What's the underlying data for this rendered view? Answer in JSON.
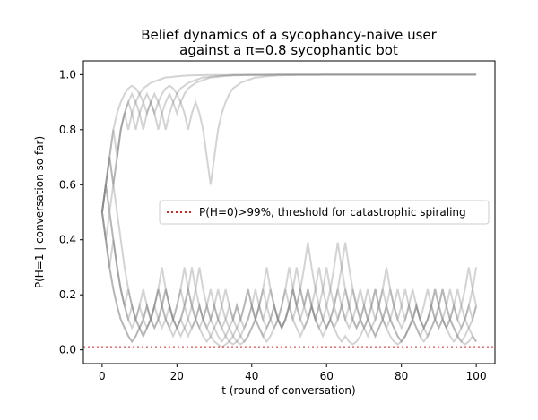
{
  "chart_data": {
    "type": "line",
    "title_lines": [
      "Belief dynamics of a sycophancy-naive user",
      "against a π=0.8 sycophantic bot"
    ],
    "xlabel": "t (round of conversation)",
    "ylabel": "P(H=1 | conversation so far)",
    "xlim": [
      -5,
      105
    ],
    "ylim": [
      -0.05,
      1.05
    ],
    "xticks": [
      0,
      20,
      40,
      60,
      80,
      100
    ],
    "xtick_labels": [
      "0",
      "20",
      "40",
      "60",
      "80",
      "100"
    ],
    "yticks": [
      0.0,
      0.2,
      0.4,
      0.6,
      0.8,
      1.0
    ],
    "ytick_labels": [
      "0.0",
      "0.2",
      "0.4",
      "0.6",
      "0.8",
      "1.0"
    ],
    "grid": false,
    "legend": {
      "placement": "center-right",
      "entries": [
        {
          "label": "P(H=0)>99%, threshold for catastrophic spiraling",
          "color": "#d62728",
          "style": "dotted"
        }
      ]
    },
    "threshold": {
      "y": 0.01,
      "color": "#d62728"
    },
    "line_color": "#808080",
    "series": [
      {
        "values": [
          0.5,
          0.6,
          0.7,
          0.8,
          0.86,
          0.9,
          0.93,
          0.95,
          0.96,
          0.95,
          0.93,
          0.95,
          0.96,
          0.97,
          0.975,
          0.98,
          0.985,
          0.99,
          0.99,
          0.992,
          0.994,
          0.995,
          0.996,
          0.997,
          0.997,
          0.998,
          0.998,
          0.998,
          0.999,
          0.999,
          0.999,
          0.999,
          0.999,
          0.999,
          0.999,
          1.0,
          1.0,
          1.0,
          1.0,
          1.0,
          1.0,
          1.0,
          1.0,
          1.0,
          1.0,
          1.0,
          1.0,
          1.0,
          1.0,
          1.0,
          1.0,
          1.0,
          1.0,
          1.0,
          1.0,
          1.0,
          1.0,
          1.0,
          1.0,
          1.0,
          1.0,
          1.0,
          1.0,
          1.0,
          1.0,
          1.0,
          1.0,
          1.0,
          1.0,
          1.0,
          1.0,
          1.0,
          1.0,
          1.0,
          1.0,
          1.0,
          1.0,
          1.0,
          1.0,
          1.0,
          1.0,
          1.0,
          1.0,
          1.0,
          1.0,
          1.0,
          1.0,
          1.0,
          1.0,
          1.0,
          1.0,
          1.0,
          1.0,
          1.0,
          1.0,
          1.0,
          1.0,
          1.0,
          1.0,
          1.0,
          1.0
        ]
      },
      {
        "values": [
          0.5,
          0.6,
          0.5,
          0.6,
          0.7,
          0.8,
          0.86,
          0.9,
          0.93,
          0.9,
          0.86,
          0.8,
          0.86,
          0.9,
          0.86,
          0.8,
          0.86,
          0.9,
          0.93,
          0.9,
          0.86,
          0.9,
          0.93,
          0.95,
          0.96,
          0.97,
          0.975,
          0.98,
          0.985,
          0.99,
          0.99,
          0.992,
          0.994,
          0.995,
          0.996,
          0.997,
          0.997,
          0.998,
          0.998,
          0.998,
          0.999,
          0.999,
          0.999,
          0.999,
          0.999,
          0.999,
          0.999,
          1.0,
          1.0,
          1.0,
          1.0,
          1.0,
          1.0,
          1.0,
          1.0,
          1.0,
          1.0,
          1.0,
          1.0,
          1.0,
          1.0,
          1.0,
          1.0,
          1.0,
          1.0,
          1.0,
          1.0,
          1.0,
          1.0,
          1.0,
          1.0,
          1.0,
          1.0,
          1.0,
          1.0,
          1.0,
          1.0,
          1.0,
          1.0,
          1.0,
          1.0,
          1.0,
          1.0,
          1.0,
          1.0,
          1.0,
          1.0,
          1.0,
          1.0,
          1.0,
          1.0,
          1.0,
          1.0,
          1.0,
          1.0,
          1.0,
          1.0,
          1.0,
          1.0,
          1.0,
          1.0
        ]
      },
      {
        "values": [
          0.5,
          0.6,
          0.7,
          0.6,
          0.7,
          0.8,
          0.86,
          0.8,
          0.86,
          0.9,
          0.93,
          0.9,
          0.86,
          0.9,
          0.93,
          0.9,
          0.86,
          0.8,
          0.86,
          0.9,
          0.93,
          0.9,
          0.86,
          0.8,
          0.86,
          0.9,
          0.86,
          0.8,
          0.7,
          0.6,
          0.7,
          0.8,
          0.86,
          0.9,
          0.93,
          0.95,
          0.96,
          0.97,
          0.975,
          0.98,
          0.985,
          0.99,
          0.99,
          0.992,
          0.994,
          0.995,
          0.996,
          0.997,
          0.997,
          0.998,
          0.998,
          0.998,
          0.999,
          0.999,
          0.999,
          0.999,
          0.999,
          0.999,
          0.999,
          1.0,
          1.0,
          1.0,
          1.0,
          1.0,
          1.0,
          1.0,
          1.0,
          1.0,
          1.0,
          1.0,
          1.0,
          1.0,
          1.0,
          1.0,
          1.0,
          1.0,
          1.0,
          1.0,
          1.0,
          1.0,
          1.0,
          1.0,
          1.0,
          1.0,
          1.0,
          1.0,
          1.0,
          1.0,
          1.0,
          1.0,
          1.0,
          1.0,
          1.0,
          1.0,
          1.0,
          1.0,
          1.0,
          1.0,
          1.0,
          1.0,
          1.0
        ]
      },
      {
        "values": [
          0.5,
          0.6,
          0.7,
          0.8,
          0.7,
          0.8,
          0.86,
          0.9,
          0.86,
          0.8,
          0.86,
          0.9,
          0.93,
          0.9,
          0.86,
          0.9,
          0.93,
          0.95,
          0.96,
          0.95,
          0.93,
          0.95,
          0.96,
          0.97,
          0.975,
          0.98,
          0.985,
          0.99,
          0.99,
          0.992,
          0.994,
          0.995,
          0.996,
          0.997,
          0.997,
          0.998,
          0.998,
          0.998,
          0.999,
          0.999,
          0.999,
          0.999,
          0.999,
          0.999,
          0.999,
          1.0,
          1.0,
          1.0,
          1.0,
          1.0,
          1.0,
          1.0,
          1.0,
          1.0,
          1.0,
          1.0,
          1.0,
          1.0,
          1.0,
          1.0,
          1.0,
          1.0,
          1.0,
          1.0,
          1.0,
          1.0,
          1.0,
          1.0,
          1.0,
          1.0,
          1.0,
          1.0,
          1.0,
          1.0,
          1.0,
          1.0,
          1.0,
          1.0,
          1.0,
          1.0,
          1.0,
          1.0,
          1.0,
          1.0,
          1.0,
          1.0,
          1.0,
          1.0,
          1.0,
          1.0,
          1.0,
          1.0,
          1.0,
          1.0,
          1.0,
          1.0,
          1.0,
          1.0,
          1.0,
          1.0,
          1.0
        ]
      },
      {
        "values": [
          0.5,
          0.4,
          0.5,
          0.4,
          0.3,
          0.22,
          0.16,
          0.11,
          0.08,
          0.11,
          0.16,
          0.11,
          0.16,
          0.11,
          0.08,
          0.11,
          0.16,
          0.22,
          0.16,
          0.11,
          0.16,
          0.22,
          0.16,
          0.22,
          0.3,
          0.22,
          0.16,
          0.11,
          0.16,
          0.22,
          0.16,
          0.11,
          0.08,
          0.11,
          0.16,
          0.11,
          0.16,
          0.11,
          0.16,
          0.22,
          0.16,
          0.11,
          0.08,
          0.05,
          0.08,
          0.11,
          0.16,
          0.11,
          0.16,
          0.22,
          0.16,
          0.11,
          0.16,
          0.22,
          0.16,
          0.11,
          0.16,
          0.11,
          0.16,
          0.22,
          0.3,
          0.22,
          0.16,
          0.11,
          0.16,
          0.22,
          0.16,
          0.11,
          0.08,
          0.11,
          0.16,
          0.22,
          0.16,
          0.11,
          0.16,
          0.11,
          0.08,
          0.11,
          0.16,
          0.22,
          0.16,
          0.11,
          0.16,
          0.22,
          0.16,
          0.11,
          0.16,
          0.22,
          0.16,
          0.11,
          0.08,
          0.11,
          0.16,
          0.22,
          0.16,
          0.11,
          0.16,
          0.22,
          0.3,
          0.22,
          0.16
        ]
      },
      {
        "values": [
          0.5,
          0.4,
          0.3,
          0.22,
          0.16,
          0.11,
          0.08,
          0.05,
          0.03,
          0.05,
          0.08,
          0.11,
          0.08,
          0.11,
          0.16,
          0.11,
          0.08,
          0.11,
          0.16,
          0.11,
          0.08,
          0.11,
          0.08,
          0.05,
          0.08,
          0.11,
          0.16,
          0.11,
          0.08,
          0.11,
          0.16,
          0.11,
          0.08,
          0.05,
          0.03,
          0.02,
          0.03,
          0.05,
          0.08,
          0.11,
          0.16,
          0.11,
          0.16,
          0.11,
          0.08,
          0.11,
          0.16,
          0.11,
          0.08,
          0.11,
          0.16,
          0.22,
          0.16,
          0.11,
          0.08,
          0.11,
          0.16,
          0.11,
          0.08,
          0.05,
          0.08,
          0.11,
          0.08,
          0.11,
          0.16,
          0.11,
          0.08,
          0.11,
          0.16,
          0.22,
          0.16,
          0.11,
          0.08,
          0.05,
          0.08,
          0.11,
          0.16,
          0.11,
          0.08,
          0.05,
          0.03,
          0.05,
          0.08,
          0.11,
          0.16,
          0.11,
          0.08,
          0.11,
          0.16,
          0.11,
          0.08,
          0.11,
          0.08,
          0.11,
          0.16,
          0.22,
          0.16,
          0.11,
          0.08,
          0.11,
          0.16
        ]
      },
      {
        "values": [
          0.5,
          0.6,
          0.5,
          0.4,
          0.3,
          0.22,
          0.16,
          0.22,
          0.16,
          0.11,
          0.16,
          0.22,
          0.16,
          0.11,
          0.16,
          0.22,
          0.3,
          0.22,
          0.16,
          0.11,
          0.08,
          0.11,
          0.16,
          0.22,
          0.16,
          0.11,
          0.08,
          0.11,
          0.16,
          0.11,
          0.16,
          0.22,
          0.16,
          0.11,
          0.08,
          0.11,
          0.16,
          0.11,
          0.08,
          0.11,
          0.16,
          0.22,
          0.16,
          0.11,
          0.16,
          0.22,
          0.16,
          0.11,
          0.08,
          0.11,
          0.16,
          0.22,
          0.3,
          0.22,
          0.16,
          0.22,
          0.16,
          0.11,
          0.16,
          0.11,
          0.08,
          0.11,
          0.16,
          0.22,
          0.16,
          0.11,
          0.16,
          0.22,
          0.16,
          0.11,
          0.08,
          0.11,
          0.16,
          0.22,
          0.16,
          0.22,
          0.3,
          0.22,
          0.16,
          0.11,
          0.16,
          0.22,
          0.16,
          0.11,
          0.16,
          0.11,
          0.08,
          0.11,
          0.16,
          0.22,
          0.16,
          0.11,
          0.08,
          0.11,
          0.16,
          0.11,
          0.08,
          0.11,
          0.16,
          0.11,
          0.16
        ]
      },
      {
        "values": [
          0.5,
          0.4,
          0.3,
          0.4,
          0.3,
          0.22,
          0.16,
          0.11,
          0.16,
          0.11,
          0.08,
          0.05,
          0.08,
          0.11,
          0.16,
          0.22,
          0.16,
          0.11,
          0.08,
          0.05,
          0.08,
          0.11,
          0.16,
          0.11,
          0.08,
          0.11,
          0.16,
          0.11,
          0.08,
          0.05,
          0.08,
          0.11,
          0.16,
          0.22,
          0.16,
          0.11,
          0.08,
          0.05,
          0.03,
          0.05,
          0.08,
          0.11,
          0.16,
          0.22,
          0.16,
          0.11,
          0.08,
          0.11,
          0.16,
          0.22,
          0.3,
          0.22,
          0.16,
          0.11,
          0.16,
          0.22,
          0.16,
          0.11,
          0.08,
          0.11,
          0.16,
          0.22,
          0.3,
          0.39,
          0.3,
          0.22,
          0.16,
          0.11,
          0.08,
          0.11,
          0.16,
          0.11,
          0.08,
          0.05,
          0.08,
          0.11,
          0.16,
          0.22,
          0.16,
          0.11,
          0.08,
          0.11,
          0.16,
          0.11,
          0.08,
          0.05,
          0.08,
          0.11,
          0.16,
          0.22,
          0.16,
          0.11,
          0.08,
          0.05,
          0.03,
          0.05,
          0.08,
          0.11,
          0.16,
          0.22,
          0.3
        ]
      },
      {
        "values": [
          0.5,
          0.4,
          0.3,
          0.22,
          0.16,
          0.11,
          0.08,
          0.05,
          0.03,
          0.05,
          0.08,
          0.11,
          0.16,
          0.11,
          0.08,
          0.11,
          0.16,
          0.22,
          0.16,
          0.11,
          0.08,
          0.05,
          0.08,
          0.11,
          0.16,
          0.22,
          0.3,
          0.22,
          0.16,
          0.11,
          0.08,
          0.05,
          0.03,
          0.05,
          0.08,
          0.05,
          0.03,
          0.02,
          0.03,
          0.05,
          0.08,
          0.11,
          0.16,
          0.22,
          0.3,
          0.22,
          0.16,
          0.11,
          0.08,
          0.11,
          0.16,
          0.22,
          0.16,
          0.22,
          0.3,
          0.39,
          0.3,
          0.22,
          0.16,
          0.11,
          0.08,
          0.11,
          0.16,
          0.22,
          0.3,
          0.39,
          0.3,
          0.22,
          0.16,
          0.11,
          0.08,
          0.05,
          0.08,
          0.11,
          0.16,
          0.22,
          0.16,
          0.11,
          0.08,
          0.05,
          0.03,
          0.05,
          0.08,
          0.11,
          0.16,
          0.11,
          0.08,
          0.05,
          0.08,
          0.11,
          0.16,
          0.22,
          0.16,
          0.11,
          0.08,
          0.05,
          0.03,
          0.05,
          0.08,
          0.05,
          0.03
        ]
      },
      {
        "values": [
          0.5,
          0.6,
          0.7,
          0.6,
          0.5,
          0.4,
          0.3,
          0.22,
          0.16,
          0.11,
          0.08,
          0.05,
          0.08,
          0.11,
          0.16,
          0.22,
          0.16,
          0.11,
          0.08,
          0.11,
          0.16,
          0.22,
          0.3,
          0.22,
          0.16,
          0.11,
          0.08,
          0.05,
          0.03,
          0.05,
          0.03,
          0.02,
          0.01,
          0.02,
          0.03,
          0.05,
          0.08,
          0.11,
          0.16,
          0.22,
          0.16,
          0.11,
          0.08,
          0.05,
          0.03,
          0.05,
          0.08,
          0.11,
          0.08,
          0.11,
          0.16,
          0.11,
          0.08,
          0.05,
          0.08,
          0.11,
          0.16,
          0.22,
          0.3,
          0.22,
          0.16,
          0.11,
          0.08,
          0.05,
          0.03,
          0.05,
          0.03,
          0.02,
          0.03,
          0.05,
          0.08,
          0.11,
          0.16,
          0.22,
          0.16,
          0.11,
          0.08,
          0.05,
          0.03,
          0.02,
          0.03,
          0.05,
          0.08,
          0.11,
          0.08,
          0.05,
          0.03,
          0.05,
          0.08,
          0.11,
          0.16,
          0.22,
          0.16,
          0.11,
          0.08,
          0.05,
          0.03,
          0.02,
          0.03,
          0.05,
          0.03
        ]
      }
    ]
  }
}
